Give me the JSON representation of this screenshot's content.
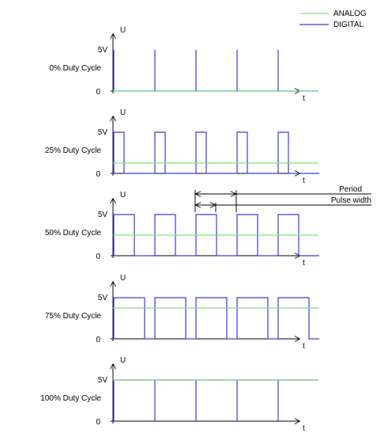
{
  "legend": [
    {
      "name": "ANALOG",
      "color": "#7fe07f"
    },
    {
      "name": "DIGITAL",
      "color": "#3a3adf"
    }
  ],
  "axis_labels": {
    "y": "U",
    "x": "t",
    "high": "5V",
    "low": "0"
  },
  "panels": [
    {
      "label": "0% Duty Cycle",
      "duty": 0
    },
    {
      "label": "25% Duty Cycle",
      "duty": 0.25
    },
    {
      "label": "50% Duty Cycle",
      "duty": 0.5
    },
    {
      "label": "75% Duty Cycle",
      "duty": 0.75
    },
    {
      "label": "100% Duty Cycle",
      "duty": 1
    }
  ],
  "annotations": {
    "period": "Period",
    "pulse_width": "Pulse width"
  }
}
